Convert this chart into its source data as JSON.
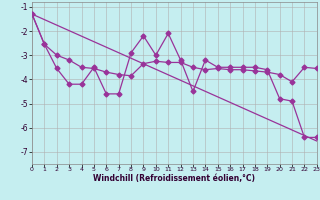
{
  "title": "",
  "xlabel": "Windchill (Refroidissement éolien,°C)",
  "ylabel": "",
  "bg_color": "#c5eef0",
  "grid_color": "#b0b0b0",
  "line_color": "#993399",
  "xlim": [
    0,
    23
  ],
  "ylim": [
    -7.5,
    -0.8
  ],
  "yticks": [
    -7,
    -6,
    -5,
    -4,
    -3,
    -2,
    -1
  ],
  "xticks": [
    0,
    1,
    2,
    3,
    4,
    5,
    6,
    7,
    8,
    9,
    10,
    11,
    12,
    13,
    14,
    15,
    16,
    17,
    18,
    19,
    20,
    21,
    22,
    23
  ],
  "line1_x": [
    0,
    1,
    2,
    3,
    4,
    5,
    6,
    7,
    8,
    9,
    10,
    11,
    12,
    13,
    14,
    15,
    16,
    17,
    18,
    19,
    20,
    21,
    22,
    23
  ],
  "line1_y": [
    -1.3,
    -2.55,
    -3.55,
    -4.2,
    -4.2,
    -3.5,
    -4.6,
    -4.6,
    -2.9,
    -2.2,
    -3.0,
    -2.1,
    -3.2,
    -4.5,
    -3.2,
    -3.5,
    -3.5,
    -3.5,
    -3.5,
    -3.6,
    -4.8,
    -4.9,
    -6.4,
    -6.4
  ],
  "line2_x": [
    0,
    1,
    2,
    3,
    4,
    5,
    6,
    7,
    8,
    9,
    10,
    11,
    12,
    13,
    14,
    15,
    16,
    17,
    18,
    19,
    20,
    21,
    22,
    23
  ],
  "line2_y": [
    -1.3,
    -2.55,
    -3.0,
    -3.2,
    -3.5,
    -3.55,
    -3.7,
    -3.8,
    -3.85,
    -3.35,
    -3.25,
    -3.3,
    -3.3,
    -3.5,
    -3.6,
    -3.55,
    -3.6,
    -3.6,
    -3.65,
    -3.7,
    -3.8,
    -4.1,
    -3.5,
    -3.55
  ],
  "line3_x": [
    0,
    23
  ],
  "line3_y": [
    -1.3,
    -6.55
  ],
  "marker_style": "D",
  "marker_size": 2.5,
  "lw": 0.9
}
